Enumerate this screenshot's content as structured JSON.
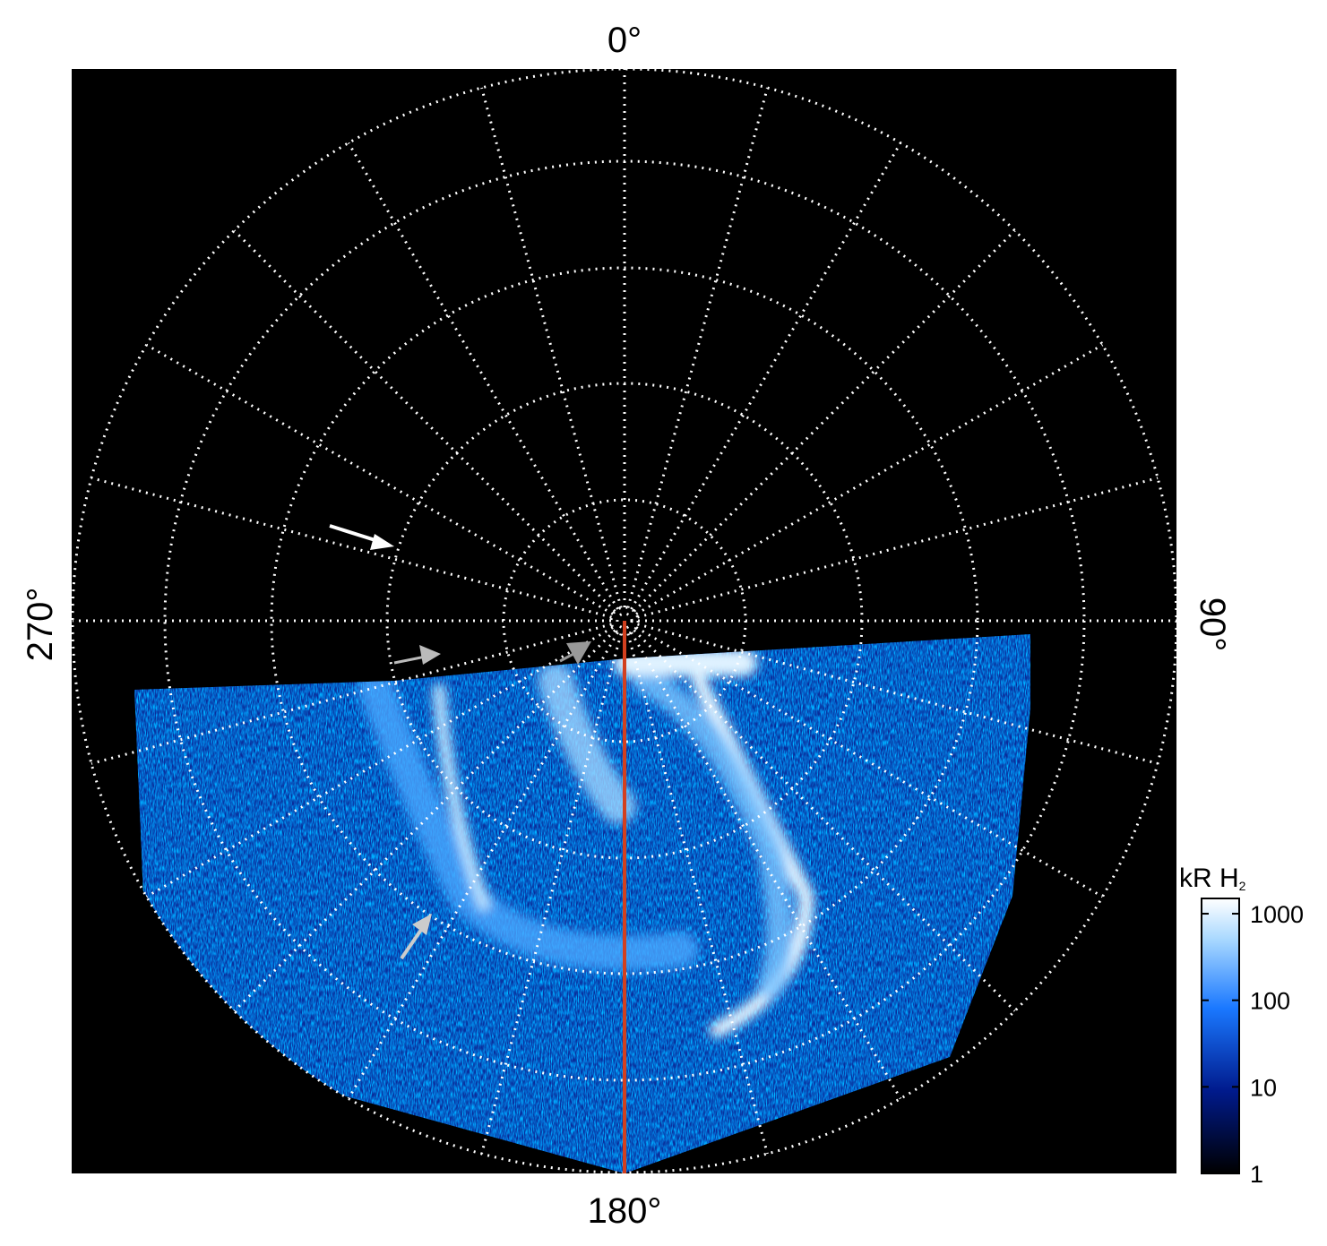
{
  "labels": {
    "top": "0°",
    "right": "90°",
    "bottom": "180°",
    "left": "270°"
  },
  "colorbar": {
    "title": "kR H",
    "title_subscript": "2",
    "lim": [
      1,
      1500
    ],
    "ticks": [
      1,
      10,
      100,
      1000
    ],
    "log": true
  }
}
